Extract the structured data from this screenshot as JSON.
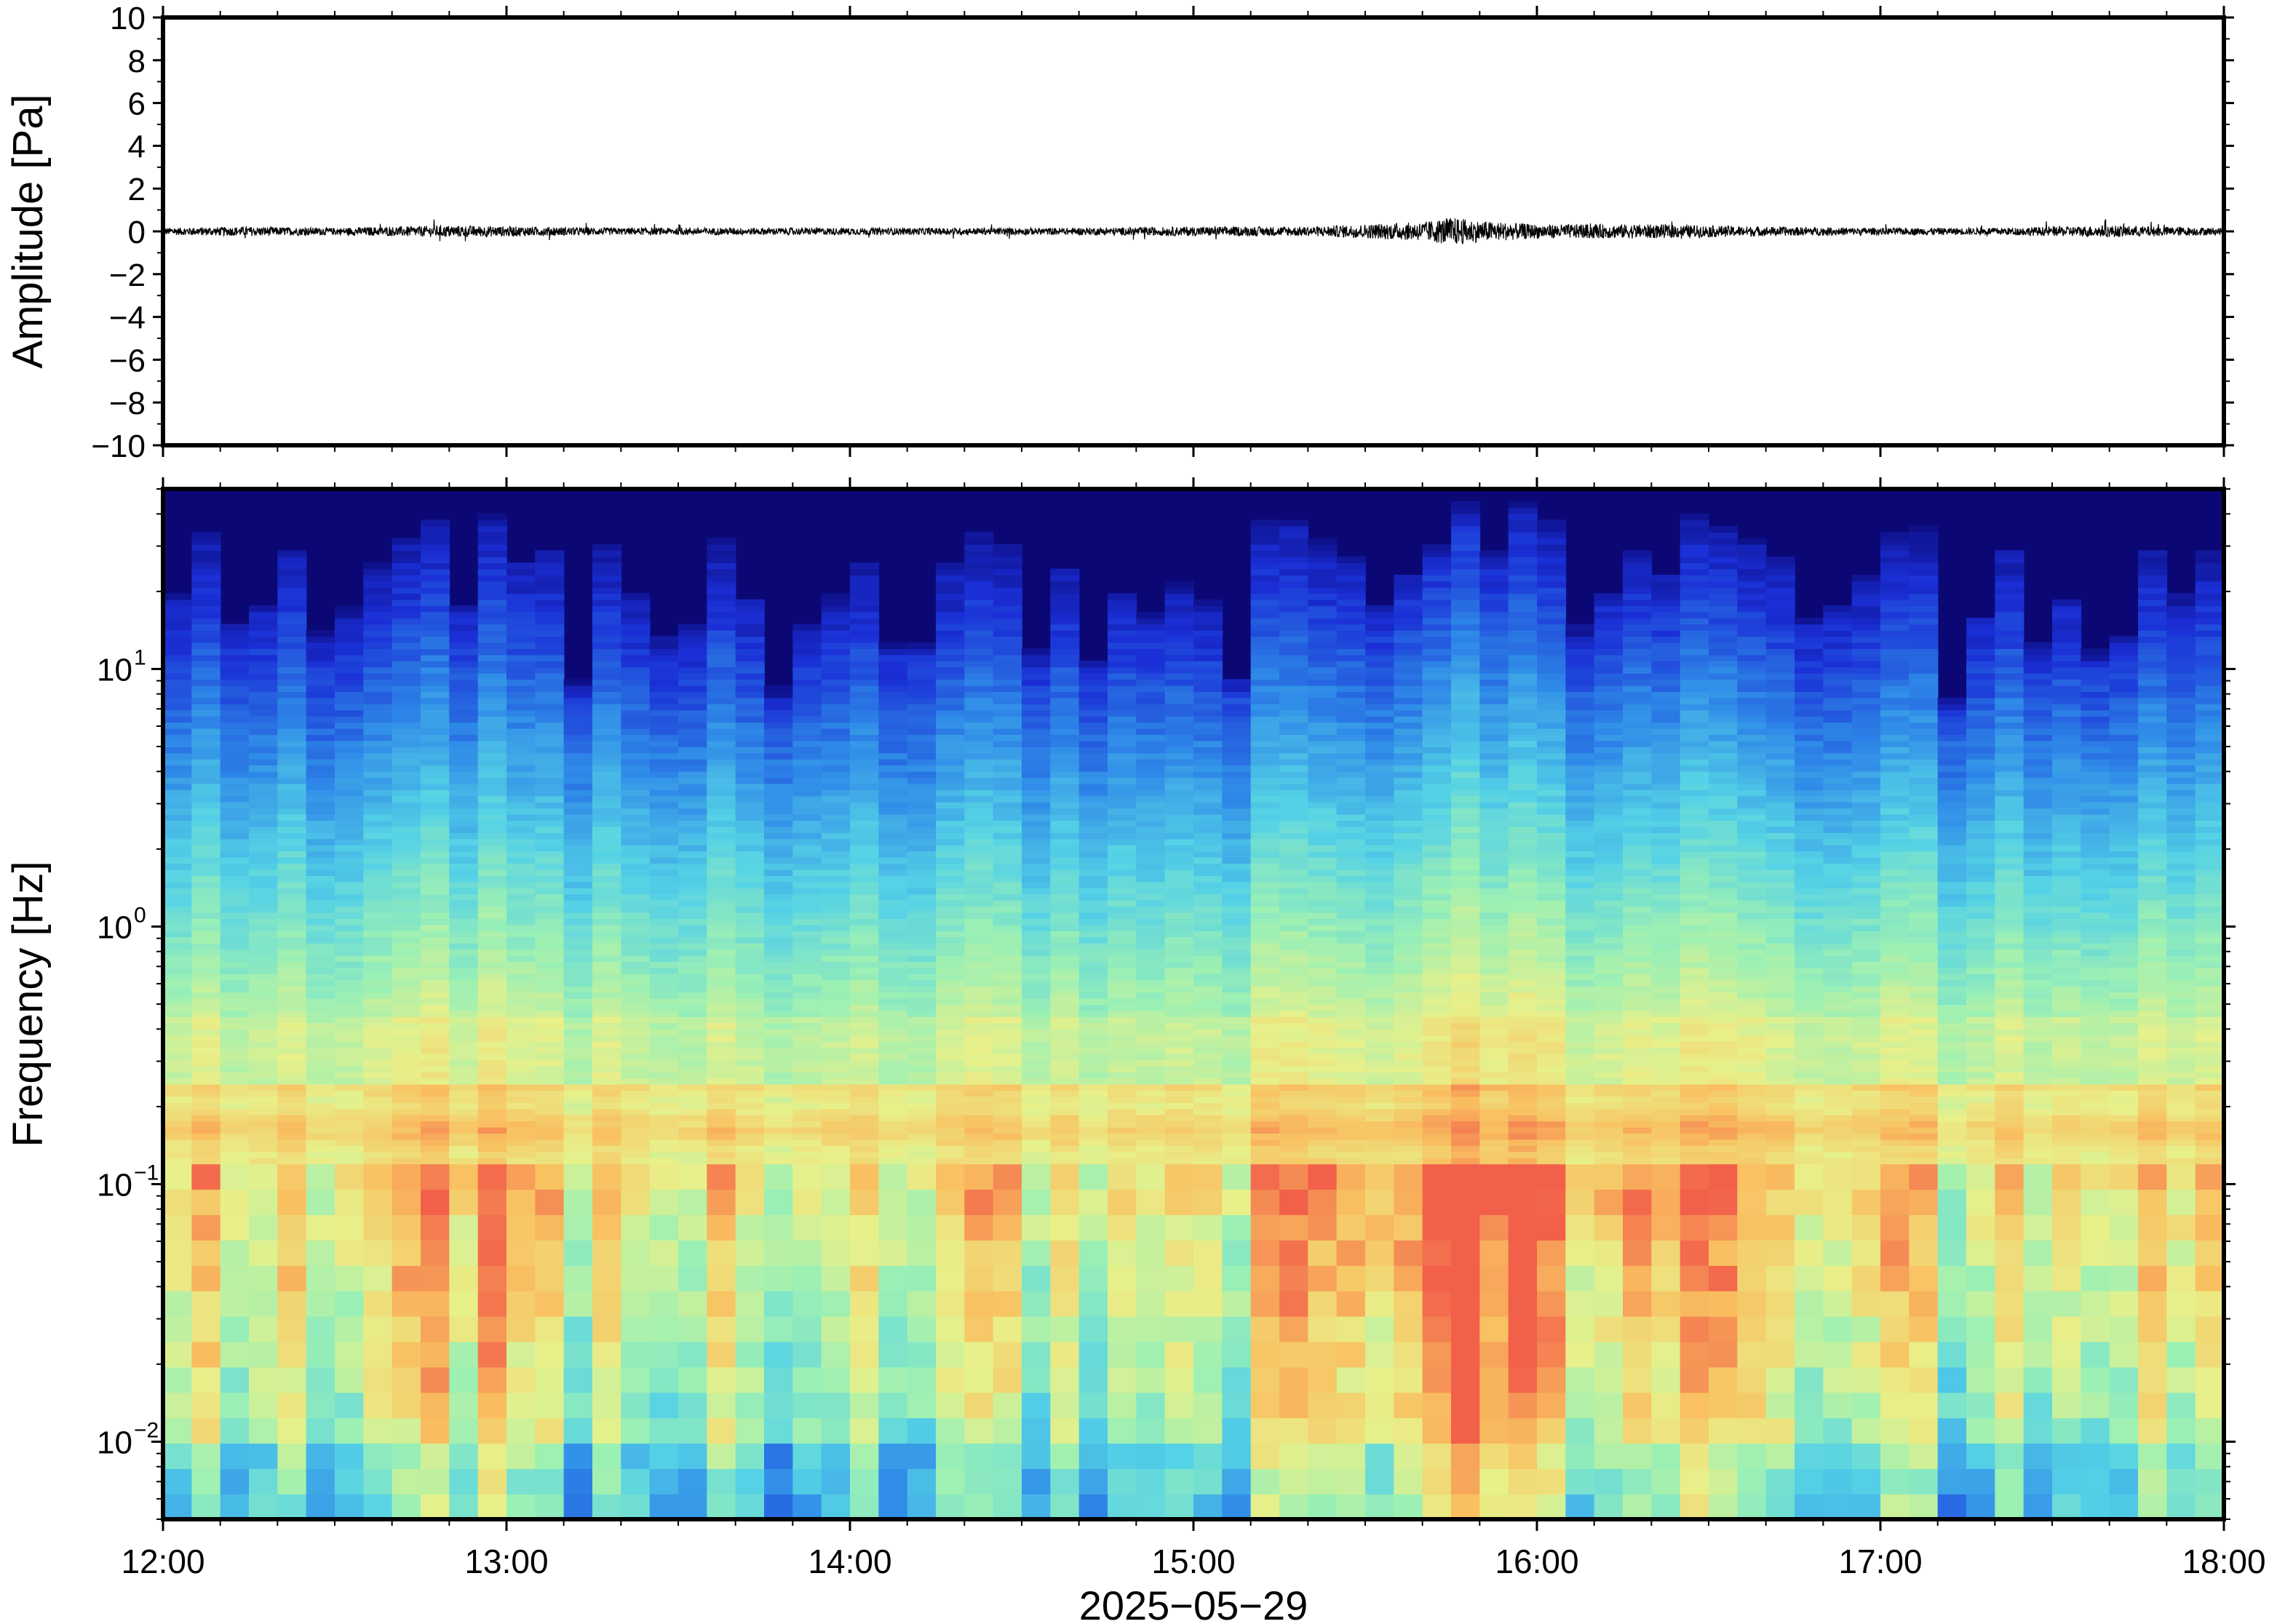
{
  "chart_data": [
    {
      "type": "line",
      "ylabel": "Amplitude [Pa]",
      "ylim": [
        -10,
        10
      ],
      "y_ticks": [
        "10",
        "8",
        "6",
        "4",
        "2",
        "0",
        "−2",
        "−4",
        "−6",
        "−8",
        "−10"
      ],
      "y_tick_values": [
        10,
        8,
        6,
        4,
        2,
        0,
        -2,
        -4,
        -6,
        -8,
        -10
      ],
      "x_ticks": [
        "12:00",
        "13:00",
        "14:00",
        "15:00",
        "16:00",
        "17:00",
        "18:00"
      ],
      "x_range_hours": [
        12,
        18
      ],
      "series_color": "#000000",
      "series": [
        {
          "x": [
            "12:00",
            "12:15",
            "12:30",
            "12:50",
            "13:05",
            "13:20",
            "13:40",
            "14:00",
            "14:20",
            "14:40",
            "15:00",
            "15:20",
            "15:40",
            "15:45",
            "15:50",
            "16:00",
            "16:20",
            "16:40",
            "17:00",
            "17:20",
            "17:40",
            "18:00"
          ],
          "values": [
            0.3,
            0.4,
            0.3,
            0.5,
            0.4,
            0.3,
            0.3,
            0.3,
            0.3,
            0.3,
            0.4,
            0.4,
            0.8,
            1.2,
            0.9,
            0.6,
            0.6,
            0.4,
            0.3,
            0.3,
            0.5,
            0.3
          ]
        }
      ],
      "grid": false
    },
    {
      "type": "heatmap",
      "ylabel": "Frequency [Hz]",
      "xlabel": "2025−05−29",
      "y_scale": "log",
      "ylim": [
        0.005,
        50
      ],
      "y_ticks": [
        {
          "base": "10",
          "exp": "1",
          "value": 10
        },
        {
          "base": "10",
          "exp": "0",
          "value": 1
        },
        {
          "base": "10",
          "exp": "−1",
          "value": 0.1
        },
        {
          "base": "10",
          "exp": "−2",
          "value": 0.01
        }
      ],
      "x_ticks": [
        "12:00",
        "13:00",
        "14:00",
        "15:00",
        "16:00",
        "17:00",
        "18:00"
      ],
      "x_range_hours": [
        12,
        18
      ],
      "colormap": [
        "#0b0875",
        "#1a2fd6",
        "#2f8be8",
        "#55d2e6",
        "#9cf0b4",
        "#e8f08a",
        "#f9c060",
        "#f2604a"
      ],
      "columns_per_hour": 12,
      "grid": false
    }
  ]
}
